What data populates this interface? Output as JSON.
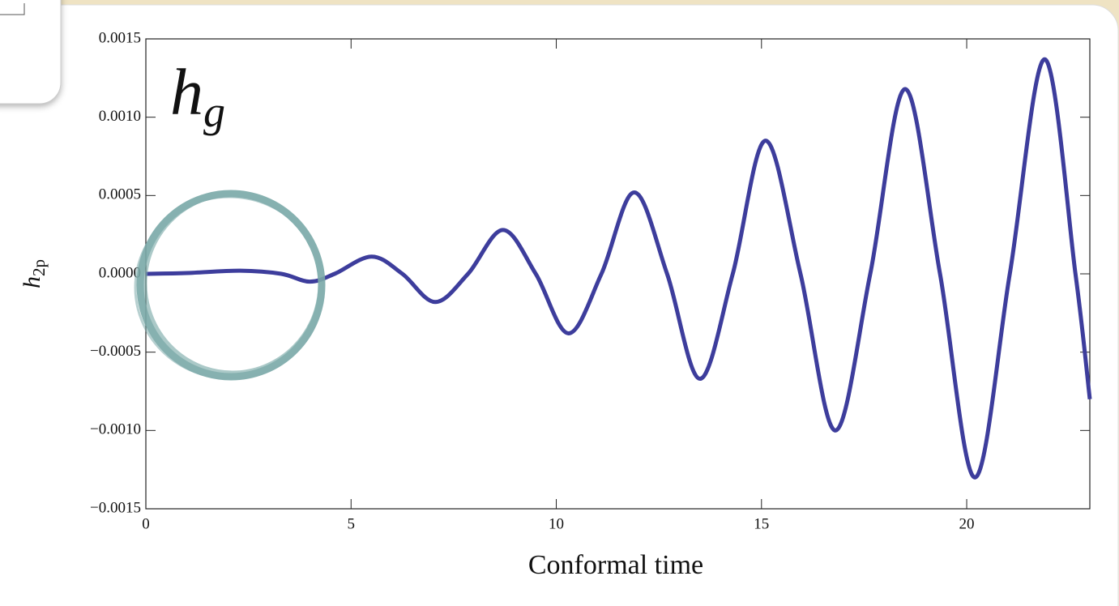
{
  "chart_data": {
    "type": "line",
    "xlabel": "Conformal time",
    "ylabel": {
      "base": "h",
      "subscript": "2p"
    },
    "annotation": {
      "base": "h",
      "subscript": "g"
    },
    "x": [
      0,
      1,
      2.3,
      3.3,
      4.0,
      4.6,
      5.5,
      6.25,
      7.05,
      7.85,
      8.7,
      9.5,
      10.3,
      11.1,
      11.9,
      12.7,
      13.5,
      14.3,
      15.1,
      15.95,
      16.8,
      17.65,
      18.5,
      19.35,
      20.2,
      21.05,
      21.9,
      22.65,
      23
    ],
    "series": [
      {
        "color": "#3d3d9c",
        "values": [
          0,
          5e-06,
          2e-05,
          0,
          -5e-05,
          0,
          0.00011,
          0,
          -0.00018,
          0,
          0.00028,
          0,
          -0.00038,
          0,
          0.00052,
          0,
          -0.00067,
          0,
          0.00085,
          0,
          -0.001,
          0,
          0.00118,
          0,
          -0.0013,
          0,
          0.00137,
          0,
          -0.0008
        ]
      }
    ],
    "xlim": [
      0,
      23
    ],
    "xticks": [
      0,
      5,
      10,
      15,
      20
    ],
    "ylim": [
      -0.0015,
      0.0015
    ],
    "yticks": [
      {
        "value": -0.0015,
        "label": "−0.0015"
      },
      {
        "value": -0.001,
        "label": "−0.0010"
      },
      {
        "value": -0.0005,
        "label": "−0.0005"
      },
      {
        "value": 0,
        "label": "0.0000"
      },
      {
        "value": 0.0005,
        "label": "0.0005"
      },
      {
        "value": 0.001,
        "label": "0.0010"
      },
      0.0015
    ],
    "grid": false
  }
}
